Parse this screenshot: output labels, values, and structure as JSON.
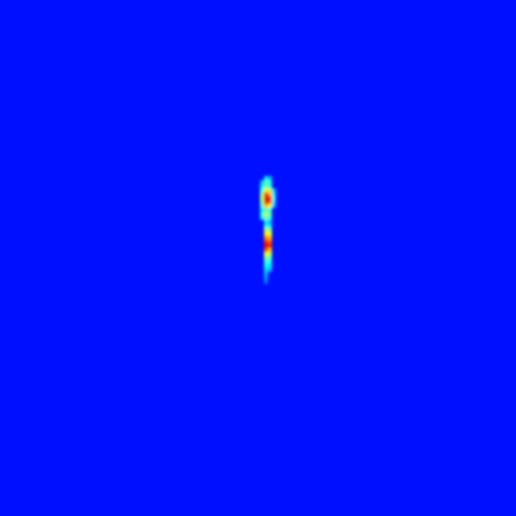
{
  "chart_data": {
    "type": "heatmap",
    "xlim": [
      0,
      129
    ],
    "ylim": [
      0,
      129
    ],
    "zlim": [
      0,
      1
    ],
    "tick_labels": false,
    "grid": false,
    "background": 0.14,
    "cells": [
      [
        66,
        44,
        0.35
      ],
      [
        67,
        44,
        0.3
      ],
      [
        65,
        45,
        0.3
      ],
      [
        66,
        45,
        0.45
      ],
      [
        67,
        45,
        0.4
      ],
      [
        65,
        46,
        0.35
      ],
      [
        66,
        46,
        0.45
      ],
      [
        67,
        46,
        0.4
      ],
      [
        65,
        47,
        0.4
      ],
      [
        66,
        47,
        0.6
      ],
      [
        67,
        47,
        0.55
      ],
      [
        68,
        47,
        0.3
      ],
      [
        65,
        48,
        0.5
      ],
      [
        66,
        48,
        0.85
      ],
      [
        67,
        48,
        0.7
      ],
      [
        68,
        48,
        0.35
      ],
      [
        65,
        49,
        0.55
      ],
      [
        66,
        49,
        0.92
      ],
      [
        67,
        49,
        0.85
      ],
      [
        68,
        49,
        0.4
      ],
      [
        65,
        50,
        0.5
      ],
      [
        66,
        50,
        0.9
      ],
      [
        67,
        50,
        0.8
      ],
      [
        68,
        50,
        0.35
      ],
      [
        65,
        51,
        0.45
      ],
      [
        66,
        51,
        0.7
      ],
      [
        67,
        51,
        0.6
      ],
      [
        68,
        51,
        0.3
      ],
      [
        65,
        52,
        0.35
      ],
      [
        66,
        52,
        0.45
      ],
      [
        67,
        52,
        0.4
      ],
      [
        65,
        53,
        0.4
      ],
      [
        66,
        53,
        0.55
      ],
      [
        67,
        53,
        0.45
      ],
      [
        65,
        54,
        0.35
      ],
      [
        66,
        54,
        0.5
      ],
      [
        67,
        54,
        0.4
      ],
      [
        66,
        55,
        0.35
      ],
      [
        67,
        55,
        0.3
      ],
      [
        66,
        56,
        0.4
      ],
      [
        67,
        56,
        0.35
      ],
      [
        66,
        57,
        0.55
      ],
      [
        67,
        57,
        0.5
      ],
      [
        66,
        58,
        0.65
      ],
      [
        67,
        58,
        0.6
      ],
      [
        66,
        59,
        0.75
      ],
      [
        67,
        59,
        0.7
      ],
      [
        66,
        60,
        0.85
      ],
      [
        67,
        60,
        0.8
      ],
      [
        66,
        61,
        0.9
      ],
      [
        67,
        61,
        0.85
      ],
      [
        66,
        62,
        0.8
      ],
      [
        67,
        62,
        0.7
      ],
      [
        66,
        63,
        0.6
      ],
      [
        67,
        63,
        0.55
      ],
      [
        66,
        64,
        0.5
      ],
      [
        67,
        64,
        0.45
      ],
      [
        66,
        65,
        0.42
      ],
      [
        67,
        65,
        0.38
      ],
      [
        66,
        66,
        0.38
      ],
      [
        67,
        66,
        0.35
      ],
      [
        66,
        67,
        0.33
      ],
      [
        67,
        67,
        0.3
      ],
      [
        66,
        68,
        0.3
      ],
      [
        66,
        69,
        0.27
      ],
      [
        66,
        70,
        0.24
      ]
    ]
  }
}
